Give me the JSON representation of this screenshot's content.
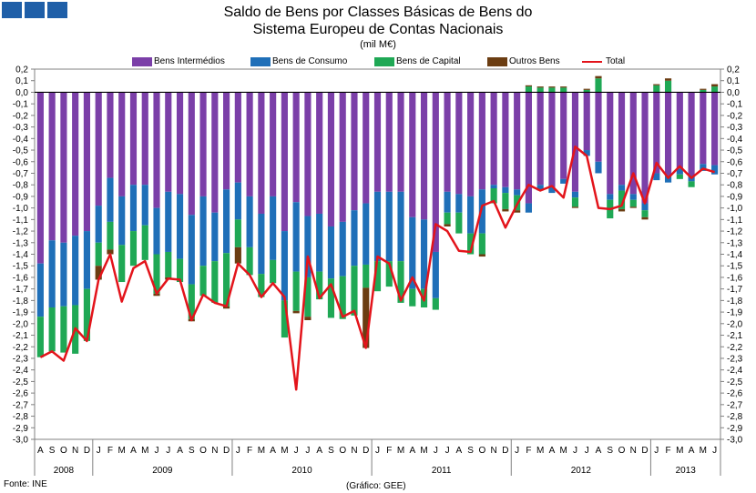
{
  "title_line1": "Saldo de Bens por Classes Básicas de Bens do",
  "title_line2": "Sistema Europeu de Contas Nacionais",
  "subtitle": "(mil M€)",
  "source": "Fonte: INE",
  "credit": "(Gráfico: GEE)",
  "chart_data": {
    "type": "bar",
    "stacked": true,
    "ylim": [
      -3.0,
      0.2
    ],
    "ytick_step": 0.1,
    "grid": false,
    "legend_position": "top",
    "months": [
      "A",
      "S",
      "O",
      "N",
      "D",
      "J",
      "F",
      "M",
      "A",
      "M",
      "J",
      "J",
      "A",
      "S",
      "O",
      "N",
      "D",
      "J",
      "F",
      "M",
      "A",
      "M",
      "J",
      "J",
      "A",
      "S",
      "O",
      "N",
      "D",
      "J",
      "F",
      "M",
      "A",
      "M",
      "J",
      "J",
      "A",
      "S",
      "O",
      "N",
      "D",
      "J",
      "F",
      "M",
      "A",
      "M",
      "J",
      "J",
      "A",
      "S",
      "O",
      "N",
      "D",
      "J",
      "F",
      "M",
      "A",
      "M",
      "J"
    ],
    "years": [
      {
        "label": "2008",
        "start": 0,
        "end": 4
      },
      {
        "label": "2009",
        "start": 5,
        "end": 16
      },
      {
        "label": "2010",
        "start": 17,
        "end": 28
      },
      {
        "label": "2011",
        "start": 29,
        "end": 40
      },
      {
        "label": "2012",
        "start": 41,
        "end": 52
      },
      {
        "label": "2013",
        "start": 53,
        "end": 58
      }
    ],
    "series": [
      {
        "name": "Bens Intermédios",
        "color": "#7b3fa8",
        "values": [
          -1.48,
          -1.28,
          -1.3,
          -1.24,
          -1.2,
          -0.98,
          -0.74,
          -0.9,
          -0.8,
          -0.8,
          -1.0,
          -0.86,
          -0.88,
          -1.06,
          -0.9,
          -1.04,
          -0.84,
          -0.78,
          -0.9,
          -1.05,
          -0.9,
          -1.2,
          -0.95,
          -1.07,
          -1.05,
          -1.16,
          -1.12,
          -1.02,
          -0.96,
          -0.86,
          -0.86,
          -0.86,
          -1.08,
          -1.1,
          -1.38,
          -0.86,
          -0.88,
          -0.9,
          -0.84,
          -0.8,
          -0.82,
          -0.84,
          -0.96,
          -0.8,
          -0.82,
          -0.75,
          -0.86,
          -0.5,
          -0.6,
          -0.88,
          -0.8,
          -0.88,
          -0.96,
          -0.7,
          -0.72,
          -0.66,
          -0.72,
          -0.62,
          -0.63
        ]
      },
      {
        "name": "Bens de Consumo",
        "color": "#1f6fb8",
        "values": [
          -0.46,
          -0.58,
          -0.55,
          -0.6,
          -0.5,
          -0.32,
          -0.38,
          -0.42,
          -0.4,
          -0.35,
          -0.4,
          -0.52,
          -0.56,
          -0.6,
          -0.6,
          -0.42,
          -0.55,
          -0.32,
          -0.44,
          -0.52,
          -0.55,
          -0.6,
          -0.6,
          -0.53,
          -0.5,
          -0.45,
          -0.47,
          -0.48,
          -0.53,
          -0.6,
          -0.6,
          -0.6,
          -0.62,
          -0.6,
          -0.4,
          -0.18,
          -0.16,
          -0.32,
          -0.38,
          -0.03,
          -0.05,
          -0.05,
          -0.08,
          -0.05,
          -0.05,
          -0.04,
          -0.05,
          -0.05,
          -0.1,
          -0.05,
          -0.05,
          -0.05,
          -0.06,
          -0.06,
          -0.06,
          -0.05,
          -0.05,
          -0.06,
          -0.08
        ]
      },
      {
        "name": "Bens de Capital",
        "color": "#1fa855",
        "values": [
          -0.35,
          -0.38,
          -0.4,
          -0.42,
          -0.45,
          -0.2,
          -0.24,
          -0.32,
          -0.3,
          -0.3,
          -0.34,
          -0.22,
          -0.2,
          -0.3,
          -0.26,
          -0.36,
          -0.46,
          -0.24,
          -0.24,
          -0.2,
          -0.2,
          -0.32,
          -0.34,
          -0.34,
          -0.24,
          -0.34,
          -0.37,
          -0.43,
          -0.2,
          -0.26,
          -0.22,
          -0.36,
          -0.15,
          -0.16,
          -0.1,
          -0.1,
          -0.18,
          -0.18,
          -0.18,
          -0.13,
          -0.14,
          -0.13,
          0.05,
          0.04,
          0.04,
          0.04,
          -0.08,
          0.02,
          0.12,
          -0.16,
          -0.16,
          -0.06,
          -0.06,
          0.06,
          0.1,
          -0.04,
          -0.05,
          0.02,
          0.05
        ]
      },
      {
        "name": "Outros Bens",
        "color": "#6b3d12",
        "values": [
          0.0,
          0.0,
          0.0,
          0.0,
          0.0,
          -0.12,
          -0.04,
          0.0,
          0.0,
          0.0,
          -0.02,
          -0.02,
          0.0,
          -0.02,
          0.0,
          0.0,
          -0.02,
          -0.14,
          0.0,
          0.0,
          0.0,
          0.0,
          -0.02,
          -0.03,
          0.0,
          0.0,
          0.0,
          0.0,
          -0.52,
          0.0,
          0.0,
          0.0,
          0.0,
          0.0,
          0.0,
          -0.02,
          0.0,
          0.0,
          -0.02,
          0.0,
          -0.02,
          -0.02,
          0.01,
          0.01,
          0.01,
          0.01,
          -0.01,
          0.01,
          0.02,
          0.0,
          -0.02,
          -0.01,
          -0.02,
          0.01,
          0.02,
          0.0,
          0.0,
          0.01,
          0.02
        ]
      }
    ],
    "line": {
      "name": "Total",
      "color": "#e3141b",
      "values": [
        -2.29,
        -2.24,
        -2.32,
        -2.04,
        -2.15,
        -1.62,
        -1.4,
        -1.81,
        -1.52,
        -1.46,
        -1.74,
        -1.61,
        -1.62,
        -1.97,
        -1.75,
        -1.82,
        -1.85,
        -1.48,
        -1.58,
        -1.77,
        -1.65,
        -1.77,
        -2.57,
        -1.42,
        -1.78,
        -1.66,
        -1.94,
        -1.89,
        -2.21,
        -1.42,
        -1.48,
        -1.8,
        -1.6,
        -1.8,
        -1.14,
        -1.2,
        -1.37,
        -1.38,
        -0.98,
        -0.94,
        -1.17,
        -0.97,
        -0.8,
        -0.85,
        -0.81,
        -0.91,
        -0.47,
        -0.55,
        -1.0,
        -1.01,
        -0.98,
        -0.7,
        -0.96,
        -0.61,
        -0.74,
        -0.64,
        -0.74,
        -0.66,
        -0.69
      ]
    }
  }
}
